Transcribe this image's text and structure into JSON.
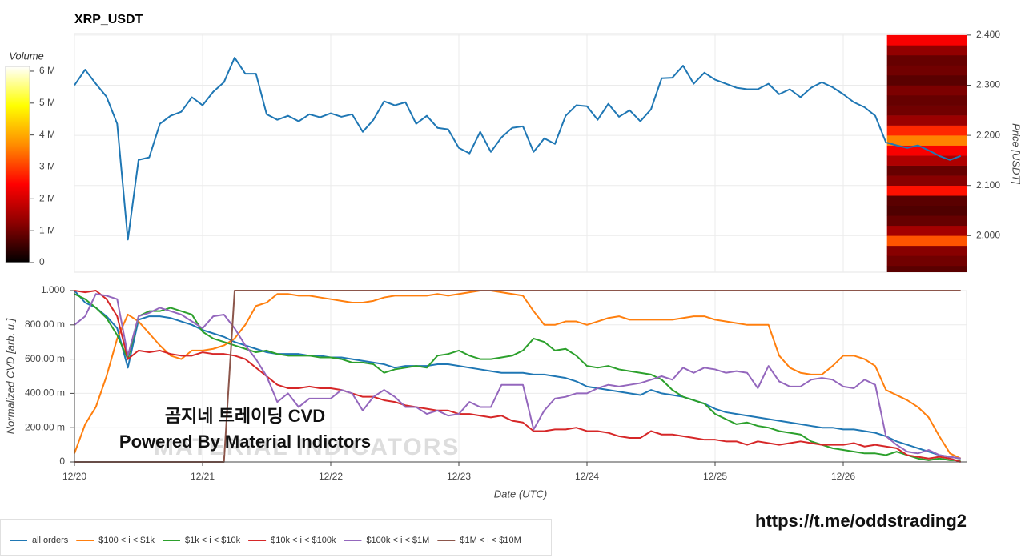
{
  "chart_data": [
    {
      "type": "line",
      "title": "XRP_USDT",
      "color": "#1f77b4",
      "x": [
        0,
        2,
        4,
        6,
        8,
        10,
        12,
        14,
        16,
        18,
        20,
        22,
        24,
        26,
        28,
        30,
        32,
        34,
        36,
        38,
        40,
        42,
        44,
        46,
        48,
        50,
        52,
        54,
        56,
        58,
        60,
        62,
        64,
        66,
        68,
        70,
        72,
        74,
        76,
        78,
        80,
        82,
        84,
        86,
        88,
        90,
        92,
        94,
        96,
        98,
        100,
        102,
        104,
        106,
        108,
        110,
        112,
        114,
        116,
        118,
        120,
        122,
        124,
        126,
        128,
        130,
        132,
        134,
        136,
        138,
        140,
        142,
        144,
        146,
        148,
        150,
        152,
        154,
        156,
        158,
        160,
        162,
        164,
        166
      ],
      "values": [
        2.3,
        2.331,
        2.303,
        2.277,
        2.223,
        1.992,
        2.151,
        2.156,
        2.223,
        2.239,
        2.247,
        2.276,
        2.26,
        2.287,
        2.306,
        2.355,
        2.323,
        2.323,
        2.242,
        2.231,
        2.239,
        2.228,
        2.242,
        2.236,
        2.244,
        2.237,
        2.242,
        2.207,
        2.231,
        2.268,
        2.26,
        2.266,
        2.223,
        2.239,
        2.215,
        2.212,
        2.175,
        2.164,
        2.207,
        2.167,
        2.196,
        2.215,
        2.218,
        2.167,
        2.194,
        2.183,
        2.239,
        2.26,
        2.258,
        2.231,
        2.263,
        2.237,
        2.25,
        2.228,
        2.252,
        2.314,
        2.315,
        2.339,
        2.303,
        2.325,
        2.311,
        2.303,
        2.295,
        2.292,
        2.292,
        2.303,
        2.282,
        2.292,
        2.276,
        2.295,
        2.306,
        2.296,
        2.282,
        2.266,
        2.256,
        2.239,
        2.186,
        2.18,
        2.175,
        2.18,
        2.17,
        2.159,
        2.151,
        2.159
      ],
      "xlim": [
        0,
        167.1
      ],
      "xticks": [
        0,
        24,
        48,
        72,
        96,
        120,
        144
      ],
      "ylim": [
        1.927,
        2.403
      ],
      "yticks": [
        {
          "value": 2.0,
          "label": "2.000"
        },
        {
          "value": 2.1,
          "label": "2.100"
        },
        {
          "value": 2.2,
          "label": "2.200"
        },
        {
          "value": 2.3,
          "label": "2.300"
        },
        {
          "value": 2.4,
          "label": "2.400"
        }
      ],
      "ylabel": "Price [USDT]",
      "grid": true,
      "heatmap": {
        "xlim": [
          152.2,
          167.1
        ],
        "bins": [
          1.92,
          1.94,
          1.96,
          1.98,
          2.0,
          2.02,
          2.04,
          2.06,
          2.08,
          2.1,
          2.12,
          2.14,
          2.16,
          2.18,
          2.2,
          2.22,
          2.24,
          2.26,
          2.28,
          2.3,
          2.32,
          2.34,
          2.36,
          2.38,
          2.4
        ],
        "values": [
          800000,
          1000000,
          1200000,
          3200000,
          1500000,
          900000,
          700000,
          800000,
          2600000,
          1200000,
          900000,
          1600000,
          2400000,
          3600000,
          2800000,
          1400000,
          1000000,
          900000,
          1100000,
          800000,
          1000000,
          900000,
          1300000,
          2400000
        ],
        "colorscale": [
          "#000000",
          "#8b0000",
          "#ff0000",
          "#ff8c00",
          "#ffff00",
          "#ffffff"
        ],
        "colorbar": {
          "title": "Volume",
          "lim": [
            0,
            6150000
          ],
          "ticks": [
            0,
            {
              "value": 1000000,
              "label": "1 M"
            },
            {
              "value": 2000000,
              "label": "2 M"
            },
            {
              "value": 3000000,
              "label": "3 M"
            },
            {
              "value": 4000000,
              "label": "4 M"
            },
            {
              "value": 5000000,
              "label": "5 M"
            },
            {
              "value": 6000000,
              "label": "6 M"
            }
          ]
        }
      }
    },
    {
      "type": "line",
      "x": [
        0,
        2,
        4,
        6,
        8,
        10,
        12,
        14,
        16,
        18,
        20,
        22,
        24,
        26,
        28,
        30,
        32,
        34,
        36,
        38,
        40,
        42,
        44,
        46,
        48,
        50,
        52,
        54,
        56,
        58,
        60,
        62,
        64,
        66,
        68,
        70,
        72,
        74,
        76,
        78,
        80,
        82,
        84,
        86,
        88,
        90,
        92,
        94,
        96,
        98,
        100,
        102,
        104,
        106,
        108,
        110,
        112,
        114,
        116,
        118,
        120,
        122,
        124,
        126,
        128,
        130,
        132,
        134,
        136,
        138,
        140,
        142,
        144,
        146,
        148,
        150,
        152,
        154,
        156,
        158,
        160,
        162,
        164,
        166
      ],
      "series": [
        {
          "name": "all orders",
          "color": "#1f77b4",
          "values": [
            1.0,
            0.93,
            0.9,
            0.85,
            0.78,
            0.55,
            0.83,
            0.85,
            0.85,
            0.84,
            0.82,
            0.8,
            0.77,
            0.75,
            0.73,
            0.7,
            0.68,
            0.66,
            0.64,
            0.63,
            0.63,
            0.63,
            0.62,
            0.62,
            0.61,
            0.61,
            0.6,
            0.59,
            0.58,
            0.57,
            0.55,
            0.56,
            0.56,
            0.56,
            0.57,
            0.57,
            0.56,
            0.55,
            0.54,
            0.53,
            0.52,
            0.52,
            0.52,
            0.51,
            0.51,
            0.5,
            0.49,
            0.47,
            0.44,
            0.43,
            0.42,
            0.41,
            0.4,
            0.39,
            0.42,
            0.4,
            0.39,
            0.38,
            0.36,
            0.34,
            0.31,
            0.29,
            0.28,
            0.27,
            0.26,
            0.25,
            0.24,
            0.23,
            0.22,
            0.21,
            0.2,
            0.2,
            0.19,
            0.19,
            0.18,
            0.17,
            0.15,
            0.12,
            0.1,
            0.08,
            0.06,
            0.04,
            0.03,
            0.02
          ]
        },
        {
          "name": "$100 < i < $1k",
          "color": "#ff7f0e",
          "values": [
            0.05,
            0.22,
            0.32,
            0.5,
            0.72,
            0.86,
            0.82,
            0.75,
            0.68,
            0.62,
            0.6,
            0.65,
            0.65,
            0.66,
            0.68,
            0.72,
            0.8,
            0.91,
            0.93,
            0.98,
            0.98,
            0.97,
            0.97,
            0.96,
            0.95,
            0.94,
            0.93,
            0.93,
            0.94,
            0.96,
            0.97,
            0.97,
            0.97,
            0.97,
            0.98,
            0.97,
            0.98,
            0.99,
            1.0,
            1.0,
            0.99,
            0.98,
            0.97,
            0.88,
            0.8,
            0.8,
            0.82,
            0.82,
            0.8,
            0.82,
            0.84,
            0.85,
            0.83,
            0.83,
            0.83,
            0.83,
            0.83,
            0.84,
            0.85,
            0.85,
            0.83,
            0.82,
            0.81,
            0.8,
            0.8,
            0.8,
            0.62,
            0.55,
            0.52,
            0.51,
            0.51,
            0.56,
            0.62,
            0.62,
            0.6,
            0.56,
            0.42,
            0.39,
            0.36,
            0.32,
            0.26,
            0.15,
            0.05,
            0.02
          ]
        },
        {
          "name": "$1k < i < $10k",
          "color": "#2ca02c",
          "values": [
            0.98,
            0.95,
            0.9,
            0.84,
            0.74,
            0.6,
            0.85,
            0.88,
            0.88,
            0.9,
            0.88,
            0.86,
            0.76,
            0.72,
            0.7,
            0.68,
            0.66,
            0.64,
            0.65,
            0.63,
            0.62,
            0.62,
            0.62,
            0.61,
            0.61,
            0.6,
            0.58,
            0.58,
            0.57,
            0.52,
            0.54,
            0.55,
            0.56,
            0.55,
            0.62,
            0.63,
            0.65,
            0.62,
            0.6,
            0.6,
            0.61,
            0.62,
            0.65,
            0.72,
            0.7,
            0.65,
            0.66,
            0.62,
            0.56,
            0.55,
            0.56,
            0.54,
            0.53,
            0.52,
            0.51,
            0.48,
            0.42,
            0.38,
            0.36,
            0.34,
            0.28,
            0.25,
            0.22,
            0.23,
            0.21,
            0.2,
            0.18,
            0.17,
            0.16,
            0.12,
            0.1,
            0.08,
            0.07,
            0.06,
            0.05,
            0.05,
            0.04,
            0.06,
            0.04,
            0.02,
            0.01,
            0.02,
            0.01,
            0.01
          ]
        },
        {
          "name": "$10k < i < $100k",
          "color": "#d62728",
          "values": [
            1.0,
            0.99,
            1.0,
            0.95,
            0.85,
            0.6,
            0.65,
            0.64,
            0.65,
            0.63,
            0.62,
            0.62,
            0.64,
            0.63,
            0.63,
            0.62,
            0.6,
            0.55,
            0.5,
            0.45,
            0.43,
            0.43,
            0.44,
            0.43,
            0.43,
            0.42,
            0.4,
            0.38,
            0.38,
            0.36,
            0.35,
            0.33,
            0.32,
            0.31,
            0.3,
            0.3,
            0.28,
            0.28,
            0.27,
            0.26,
            0.27,
            0.24,
            0.23,
            0.18,
            0.18,
            0.19,
            0.19,
            0.2,
            0.18,
            0.18,
            0.17,
            0.15,
            0.14,
            0.14,
            0.18,
            0.16,
            0.16,
            0.15,
            0.14,
            0.13,
            0.13,
            0.12,
            0.12,
            0.1,
            0.12,
            0.11,
            0.1,
            0.11,
            0.12,
            0.11,
            0.1,
            0.1,
            0.1,
            0.11,
            0.09,
            0.1,
            0.09,
            0.08,
            0.04,
            0.03,
            0.02,
            0.03,
            0.02,
            0.0
          ]
        },
        {
          "name": "$100k < i < $1M",
          "color": "#9467bd",
          "values": [
            0.8,
            0.85,
            0.98,
            0.97,
            0.95,
            0.62,
            0.85,
            0.87,
            0.9,
            0.88,
            0.86,
            0.82,
            0.78,
            0.85,
            0.86,
            0.78,
            0.68,
            0.6,
            0.5,
            0.35,
            0.4,
            0.32,
            0.37,
            0.37,
            0.37,
            0.42,
            0.4,
            0.3,
            0.38,
            0.42,
            0.38,
            0.32,
            0.32,
            0.28,
            0.3,
            0.27,
            0.28,
            0.35,
            0.32,
            0.32,
            0.45,
            0.45,
            0.45,
            0.19,
            0.3,
            0.37,
            0.38,
            0.4,
            0.4,
            0.43,
            0.45,
            0.44,
            0.45,
            0.46,
            0.48,
            0.5,
            0.48,
            0.55,
            0.52,
            0.55,
            0.54,
            0.52,
            0.53,
            0.52,
            0.43,
            0.56,
            0.47,
            0.44,
            0.44,
            0.48,
            0.49,
            0.48,
            0.44,
            0.43,
            0.48,
            0.45,
            0.15,
            0.1,
            0.06,
            0.05,
            0.07,
            0.04,
            0.03,
            0.02
          ]
        },
        {
          "name": "$1M < i < $10M",
          "color": "#8c564b",
          "values": [
            0,
            0,
            0,
            0,
            0,
            0,
            0,
            0,
            0,
            0,
            0,
            0,
            0,
            0,
            0,
            1,
            1,
            1,
            1,
            1,
            1,
            1,
            1,
            1,
            1,
            1,
            1,
            1,
            1,
            1,
            1,
            1,
            1,
            1,
            1,
            1,
            1,
            1,
            1,
            1,
            1,
            1,
            1,
            1,
            1,
            1,
            1,
            1,
            1,
            1,
            1,
            1,
            1,
            1,
            1,
            1,
            1,
            1,
            1,
            1,
            1,
            1,
            1,
            1,
            1,
            1,
            1,
            1,
            1,
            1,
            1,
            1,
            1,
            1,
            1,
            1,
            1,
            1,
            1,
            1,
            1,
            1,
            1,
            1
          ]
        }
      ],
      "xlim": [
        0,
        167.1
      ],
      "xticks": [
        {
          "value": 0,
          "label": "12/20"
        },
        {
          "value": 24,
          "label": "12/21"
        },
        {
          "value": 48,
          "label": "12/22"
        },
        {
          "value": 72,
          "label": "12/23"
        },
        {
          "value": 96,
          "label": "12/24"
        },
        {
          "value": 120,
          "label": "12/25"
        },
        {
          "value": 144,
          "label": "12/26"
        }
      ],
      "ylim": [
        0,
        1
      ],
      "yticks": [
        0,
        {
          "value": 0.2,
          "label": "200.00 m"
        },
        {
          "value": 0.4,
          "label": "400.00 m"
        },
        {
          "value": 0.6,
          "label": "600.00 m"
        },
        {
          "value": 0.8,
          "label": "800.00 m"
        },
        {
          "value": 1,
          "label": "1.000"
        }
      ],
      "xlabel": "Date (UTC)",
      "ylabel": "Normalized CVD [arb. u.]",
      "grid": true,
      "legend": "bottom-left",
      "watermark": "MATERIAL INDICATORS",
      "annotations": [
        "곰지네 트레이딩 CVD",
        "Powered By Material Indictors",
        "https://t.me/oddstrading2"
      ]
    }
  ]
}
